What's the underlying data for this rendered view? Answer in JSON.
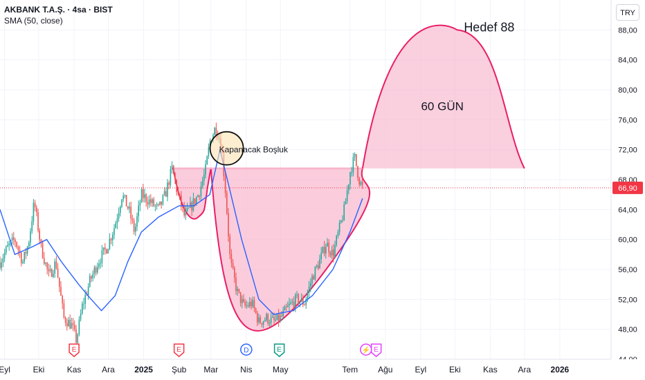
{
  "header": {
    "symbol_line": "AKBANK T.A.Ş. · 4sa · BIST",
    "indicator_line": "SMA (50, close)"
  },
  "currency_button": "TRY",
  "chart_data": {
    "type": "candlestick",
    "symbol": "AKBANK T.A.Ş.",
    "interval": "4sa",
    "exchange": "BIST",
    "currency": "TRY",
    "last_price": "66,90",
    "last_price_value": 66.9,
    "y_range": [
      44,
      92
    ],
    "y_ticks": [
      {
        "value": 44,
        "label": "44,00"
      },
      {
        "value": 48,
        "label": "48,00"
      },
      {
        "value": 52,
        "label": "52,00"
      },
      {
        "value": 56,
        "label": "56,00"
      },
      {
        "value": 60,
        "label": "60,00"
      },
      {
        "value": 64,
        "label": "64,00"
      },
      {
        "value": 68,
        "label": "68,00"
      },
      {
        "value": 72,
        "label": "72,00"
      },
      {
        "value": 76,
        "label": "76,00"
      },
      {
        "value": 80,
        "label": "80,00"
      },
      {
        "value": 84,
        "label": "84,00"
      },
      {
        "value": 88,
        "label": "88,00"
      }
    ],
    "x_range": [
      "2024-08-28",
      "2026-02-15"
    ],
    "x_ticks": [
      {
        "date": "2024-09-01",
        "label": "Eyl"
      },
      {
        "date": "2024-10-01",
        "label": "Eki"
      },
      {
        "date": "2024-11-01",
        "label": "Kas"
      },
      {
        "date": "2024-12-01",
        "label": "Ara"
      },
      {
        "date": "2025-01-01",
        "label": "2025"
      },
      {
        "date": "2025-02-01",
        "label": "Şub"
      },
      {
        "date": "2025-03-01",
        "label": "Mar"
      },
      {
        "date": "2025-04-01",
        "label": "Nis"
      },
      {
        "date": "2025-05-01",
        "label": "May"
      },
      {
        "date": "2025-07-01",
        "label": "Tem"
      },
      {
        "date": "2025-08-01",
        "label": "Ağu"
      },
      {
        "date": "2025-09-01",
        "label": "Eyl"
      },
      {
        "date": "2025-10-01",
        "label": "Eki"
      },
      {
        "date": "2025-11-01",
        "label": "Kas"
      },
      {
        "date": "2025-12-01",
        "label": "Ara"
      },
      {
        "date": "2026-01-01",
        "label": "2026"
      }
    ],
    "price_path": [
      {
        "date": "2024-08-28",
        "value": 57
      },
      {
        "date": "2024-09-04",
        "value": 59
      },
      {
        "date": "2024-09-10",
        "value": 60
      },
      {
        "date": "2024-09-17",
        "value": 57
      },
      {
        "date": "2024-09-22",
        "value": 59.5
      },
      {
        "date": "2024-09-27",
        "value": 65
      },
      {
        "date": "2024-10-03",
        "value": 59
      },
      {
        "date": "2024-10-10",
        "value": 55
      },
      {
        "date": "2024-10-16",
        "value": 57
      },
      {
        "date": "2024-10-23",
        "value": 49.5
      },
      {
        "date": "2024-10-30",
        "value": 48.5
      },
      {
        "date": "2024-11-03",
        "value": 46.5
      },
      {
        "date": "2024-11-08",
        "value": 51
      },
      {
        "date": "2024-11-15",
        "value": 54.5
      },
      {
        "date": "2024-11-22",
        "value": 57
      },
      {
        "date": "2024-11-30",
        "value": 59
      },
      {
        "date": "2024-12-07",
        "value": 62
      },
      {
        "date": "2024-12-13",
        "value": 66
      },
      {
        "date": "2024-12-19",
        "value": 64
      },
      {
        "date": "2024-12-24",
        "value": 61
      },
      {
        "date": "2024-12-30",
        "value": 66
      },
      {
        "date": "2025-01-07",
        "value": 65
      },
      {
        "date": "2025-01-14",
        "value": 64
      },
      {
        "date": "2025-01-20",
        "value": 66
      },
      {
        "date": "2025-01-26",
        "value": 69.5
      },
      {
        "date": "2025-01-31",
        "value": 66
      },
      {
        "date": "2025-02-06",
        "value": 63
      },
      {
        "date": "2025-02-12",
        "value": 64.5
      },
      {
        "date": "2025-02-18",
        "value": 66
      },
      {
        "date": "2025-02-24",
        "value": 69
      },
      {
        "date": "2025-02-28",
        "value": 73
      },
      {
        "date": "2025-03-05",
        "value": 75
      },
      {
        "date": "2025-03-10",
        "value": 73
      },
      {
        "date": "2025-03-14",
        "value": 66
      },
      {
        "date": "2025-03-18",
        "value": 57
      },
      {
        "date": "2025-03-24",
        "value": 53
      },
      {
        "date": "2025-03-30",
        "value": 51
      },
      {
        "date": "2025-04-06",
        "value": 51.5
      },
      {
        "date": "2025-04-12",
        "value": 49
      },
      {
        "date": "2025-04-19",
        "value": 49.5
      },
      {
        "date": "2025-04-25",
        "value": 49
      },
      {
        "date": "2025-05-01",
        "value": 49.5
      },
      {
        "date": "2025-05-08",
        "value": 51
      },
      {
        "date": "2025-05-15",
        "value": 52
      },
      {
        "date": "2025-05-22",
        "value": 51.5
      },
      {
        "date": "2025-05-29",
        "value": 55
      },
      {
        "date": "2025-06-04",
        "value": 57
      },
      {
        "date": "2025-06-10",
        "value": 59.5
      },
      {
        "date": "2025-06-16",
        "value": 58
      },
      {
        "date": "2025-06-21",
        "value": 61
      },
      {
        "date": "2025-06-26",
        "value": 64
      },
      {
        "date": "2025-07-01",
        "value": 69
      },
      {
        "date": "2025-07-05",
        "value": 71
      },
      {
        "date": "2025-07-09",
        "value": 68
      },
      {
        "date": "2025-07-12",
        "value": 66.9
      }
    ],
    "sma_50": [
      {
        "date": "2024-08-28",
        "value": 64
      },
      {
        "date": "2024-09-10",
        "value": 58
      },
      {
        "date": "2024-09-25",
        "value": 59
      },
      {
        "date": "2024-10-08",
        "value": 60
      },
      {
        "date": "2024-10-21",
        "value": 57
      },
      {
        "date": "2024-11-05",
        "value": 54
      },
      {
        "date": "2024-11-16",
        "value": 52
      },
      {
        "date": "2024-11-25",
        "value": 50.5
      },
      {
        "date": "2024-12-07",
        "value": 52.5
      },
      {
        "date": "2024-12-18",
        "value": 57
      },
      {
        "date": "2024-12-30",
        "value": 61
      },
      {
        "date": "2025-01-14",
        "value": 63
      },
      {
        "date": "2025-02-01",
        "value": 64.5
      },
      {
        "date": "2025-02-14",
        "value": 64.5
      },
      {
        "date": "2025-02-28",
        "value": 66
      },
      {
        "date": "2025-03-09",
        "value": 72
      },
      {
        "date": "2025-03-17",
        "value": 67
      },
      {
        "date": "2025-03-28",
        "value": 60
      },
      {
        "date": "2025-04-12",
        "value": 52
      },
      {
        "date": "2025-04-25",
        "value": 50
      },
      {
        "date": "2025-05-12",
        "value": 50.5
      },
      {
        "date": "2025-05-29",
        "value": 52.5
      },
      {
        "date": "2025-06-16",
        "value": 56
      },
      {
        "date": "2025-07-01",
        "value": 61
      },
      {
        "date": "2025-07-12",
        "value": 65.5
      }
    ],
    "gap_line_price": 69.5,
    "events": [
      {
        "date": "2024-11-01",
        "label": "E",
        "kind": "earnings"
      },
      {
        "date": "2025-02-01",
        "label": "E",
        "kind": "earnings"
      },
      {
        "date": "2025-04-01",
        "label": "D",
        "kind": "dividend"
      },
      {
        "date": "2025-04-30",
        "label": "E",
        "kind": "earnings-reported"
      },
      {
        "date": "2025-07-15",
        "label": "⚡",
        "kind": "news"
      },
      {
        "date": "2025-07-24",
        "label": "E",
        "kind": "earnings"
      }
    ],
    "annotations": [
      {
        "text": "Kapanacak Boşluk",
        "date": "2025-03-10",
        "price": 72
      },
      {
        "text": "60 GÜN",
        "date": "2025-09-20",
        "price": 78
      },
      {
        "text": "Hedef 88",
        "date": "2025-10-25",
        "price": 88
      }
    ],
    "projection": {
      "start": "2025-07-12",
      "end": "2025-12-01",
      "peak": 88,
      "base": 69.5
    },
    "colors": {
      "up": "#26a69a",
      "down": "#ef5350",
      "sma": "#2962ff",
      "pattern_fill": "#f8bbd0",
      "pattern_stroke": "#e91e63",
      "price_line": "#f23645",
      "grid": "#f0f3fa"
    }
  }
}
